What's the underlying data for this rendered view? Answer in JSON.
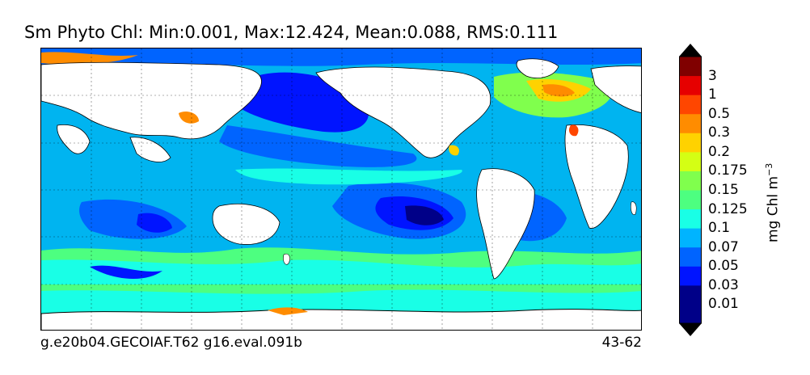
{
  "title": "Sm Phyto Chl: Min:0.001, Max:12.424, Mean:0.088, RMS:0.111",
  "footer": {
    "left": "g.e20b04.GECOIAF.T62 g16.eval.091b",
    "right": "43-62"
  },
  "colorbar": {
    "unit_main": "mg Chl m",
    "unit_sup": "−3",
    "levels": [
      "0.01",
      "0.03",
      "0.05",
      "0.07",
      "0.1",
      "0.125",
      "0.15",
      "0.175",
      "0.2",
      "0.3",
      "0.5",
      "1",
      "3"
    ],
    "colors": [
      "#000088",
      "#0014ff",
      "#0064ff",
      "#00b4ff",
      "#19ffe6",
      "#4dff80",
      "#80ff4d",
      "#d4ff14",
      "#ffd200",
      "#ff8c00",
      "#ff4600",
      "#e60000",
      "#800000"
    ]
  },
  "colors": {
    "land": "#ffffff",
    "ocean_base": "#00b4f0"
  }
}
